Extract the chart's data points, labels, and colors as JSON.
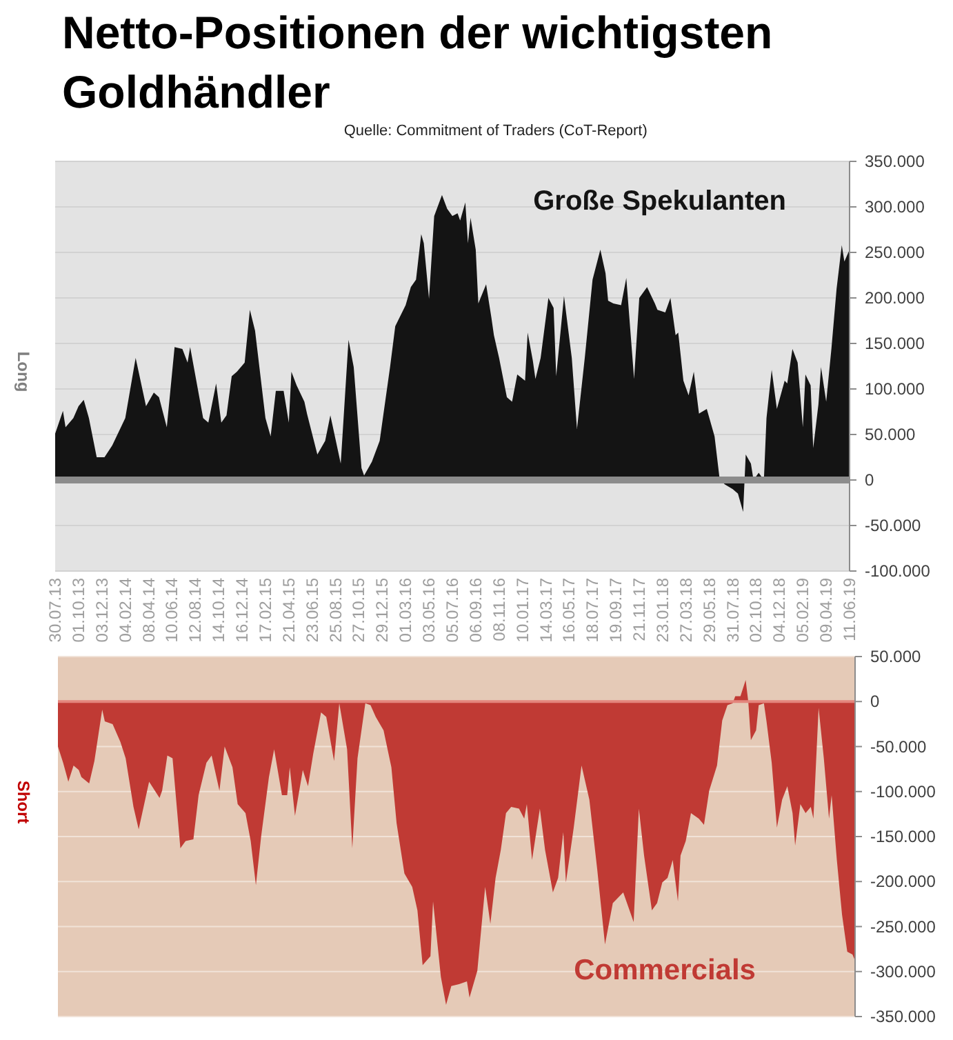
{
  "chart_data": [
    {
      "type": "area",
      "title": "Netto-Positionen der wichtigsten Goldhändler",
      "ylabel": "Long",
      "annotations": [
        "Quelle: Commitment of Traders (CoT-Report)"
      ],
      "legend": "top right",
      "grid": "y",
      "xlim": [
        "2013-07-30",
        "2019-06-11"
      ],
      "xticks": [
        {
          "value": "2013-07-30",
          "label": "30.07.13"
        },
        {
          "value": "2013-10-01",
          "label": "01.10.13"
        },
        {
          "value": "2013-12-03",
          "label": "03.12.13"
        },
        {
          "value": "2014-02-04",
          "label": "04.02.14"
        },
        {
          "value": "2014-04-08",
          "label": "08.04.14"
        },
        {
          "value": "2014-06-10",
          "label": "10.06.14"
        },
        {
          "value": "2014-08-12",
          "label": "12.08.14"
        },
        {
          "value": "2014-10-14",
          "label": "14.10.14"
        },
        {
          "value": "2014-12-16",
          "label": "16.12.14"
        },
        {
          "value": "2015-02-17",
          "label": "17.02.15"
        },
        {
          "value": "2015-04-21",
          "label": "21.04.15"
        },
        {
          "value": "2015-06-23",
          "label": "23.06.15"
        },
        {
          "value": "2015-08-25",
          "label": "25.08.15"
        },
        {
          "value": "2015-10-27",
          "label": "27.10.15"
        },
        {
          "value": "2015-12-29",
          "label": "29.12.15"
        },
        {
          "value": "2016-03-01",
          "label": "01.03.16"
        },
        {
          "value": "2016-05-03",
          "label": "03.05.16"
        },
        {
          "value": "2016-07-05",
          "label": "05.07.16"
        },
        {
          "value": "2016-09-06",
          "label": "06.09.16"
        },
        {
          "value": "2016-11-08",
          "label": "08.11.16"
        },
        {
          "value": "2017-01-10",
          "label": "10.01.17"
        },
        {
          "value": "2017-03-14",
          "label": "14.03.17"
        },
        {
          "value": "2017-05-16",
          "label": "16.05.17"
        },
        {
          "value": "2017-07-18",
          "label": "18.07.17"
        },
        {
          "value": "2017-09-19",
          "label": "19.09.17"
        },
        {
          "value": "2017-11-21",
          "label": "21.11.17"
        },
        {
          "value": "2018-01-23",
          "label": "23.01.18"
        },
        {
          "value": "2018-03-27",
          "label": "27.03.18"
        },
        {
          "value": "2018-05-29",
          "label": "29.05.18"
        },
        {
          "value": "2018-07-31",
          "label": "31.07.18"
        },
        {
          "value": "2018-10-02",
          "label": "02.10.18"
        },
        {
          "value": "2018-12-04",
          "label": "04.12.18"
        },
        {
          "value": "2019-02-05",
          "label": "05.02.19"
        },
        {
          "value": "2019-04-09",
          "label": "09.04.19"
        },
        {
          "value": "2019-06-11",
          "label": "11.06.19"
        }
      ],
      "ylim": [
        -100000,
        350000
      ],
      "yticks": [
        {
          "value": -100000,
          "label": "-100.000"
        },
        {
          "value": -50000,
          "label": "-50.000"
        },
        0,
        {
          "value": 50000,
          "label": "50.000"
        },
        {
          "value": 100000,
          "label": "100.000"
        },
        {
          "value": 150000,
          "label": "150.000"
        },
        {
          "value": 200000,
          "label": "200.000"
        },
        {
          "value": 250000,
          "label": "250.000"
        },
        {
          "value": 300000,
          "label": "300.000"
        },
        {
          "value": 350000,
          "label": "350.000"
        }
      ],
      "x": [
        "2013-07-30",
        "2013-08-20",
        "2013-08-27",
        "2013-09-17",
        "2013-10-01",
        "2013-10-15",
        "2013-10-29",
        "2013-11-19",
        "2013-12-10",
        "2013-12-31",
        "2014-02-04",
        "2014-03-04",
        "2014-04-01",
        "2014-04-22",
        "2014-05-06",
        "2014-05-27",
        "2014-06-17",
        "2014-07-08",
        "2014-07-22",
        "2014-07-29",
        "2014-09-02",
        "2014-09-16",
        "2014-10-07",
        "2014-10-21",
        "2014-11-04",
        "2014-11-18",
        "2014-12-02",
        "2014-12-23",
        "2015-01-06",
        "2015-01-20",
        "2015-02-17",
        "2015-03-03",
        "2015-03-17",
        "2015-04-07",
        "2015-04-21",
        "2015-04-28",
        "2015-05-12",
        "2015-06-02",
        "2015-06-09",
        "2015-07-07",
        "2015-07-28",
        "2015-08-11",
        "2015-08-18",
        "2015-09-08",
        "2015-09-29",
        "2015-10-13",
        "2015-11-03",
        "2015-11-10",
        "2015-11-24",
        "2015-12-01",
        "2015-12-22",
        "2016-01-19",
        "2016-02-02",
        "2016-03-01",
        "2016-03-15",
        "2016-03-29",
        "2016-04-12",
        "2016-04-19",
        "2016-05-03",
        "2016-05-17",
        "2016-06-07",
        "2016-06-21",
        "2016-07-05",
        "2016-07-19",
        "2016-07-26",
        "2016-08-09",
        "2016-08-16",
        "2016-08-23",
        "2016-09-06",
        "2016-09-13",
        "2016-10-04",
        "2016-10-18",
        "2016-10-25",
        "2016-11-08",
        "2016-11-29",
        "2016-12-13",
        "2016-12-27",
        "2017-01-17",
        "2017-01-24",
        "2017-02-07",
        "2017-02-14",
        "2017-02-28",
        "2017-03-21",
        "2017-04-04",
        "2017-04-11",
        "2017-05-02",
        "2017-05-23",
        "2017-06-06",
        "2017-06-27",
        "2017-07-18",
        "2017-08-08",
        "2017-08-22",
        "2017-08-29",
        "2017-09-12",
        "2017-10-03",
        "2017-10-17",
        "2017-11-07",
        "2017-11-21",
        "2017-12-12",
        "2018-01-02",
        "2018-01-09",
        "2018-01-30",
        "2018-02-13",
        "2018-02-27",
        "2018-03-06",
        "2018-03-20",
        "2018-04-03",
        "2018-04-17",
        "2018-05-01",
        "2018-05-22",
        "2018-06-12",
        "2018-06-26",
        "2018-07-10",
        "2018-07-31",
        "2018-08-14",
        "2018-08-28",
        "2018-09-04",
        "2018-09-18",
        "2018-09-25",
        "2018-10-09",
        "2018-10-23",
        "2018-10-30",
        "2018-11-13",
        "2018-11-27",
        "2018-12-18",
        "2018-12-25",
        "2019-01-08",
        "2019-01-22",
        "2019-02-05",
        "2019-02-12",
        "2019-02-26",
        "2019-03-05",
        "2019-03-19",
        "2019-03-26",
        "2019-04-09",
        "2019-04-23",
        "2019-05-07",
        "2019-05-21",
        "2019-05-28",
        "2019-06-11"
      ],
      "series": [
        {
          "name": "Große Spekulanten",
          "color": "#141414",
          "values": [
            51000,
            76000,
            58000,
            68000,
            81000,
            88000,
            68000,
            25000,
            25000,
            38000,
            68000,
            134000,
            81000,
            96000,
            91000,
            58000,
            146000,
            144000,
            129000,
            146000,
            68000,
            63000,
            106000,
            63000,
            71000,
            114000,
            119000,
            129000,
            187000,
            164000,
            68000,
            48000,
            98000,
            98000,
            63000,
            119000,
            104000,
            86000,
            73000,
            28000,
            43000,
            71000,
            58000,
            18000,
            154000,
            124000,
            13000,
            5000,
            15000,
            20000,
            43000,
            124000,
            169000,
            192000,
            212000,
            220000,
            270000,
            260000,
            199000,
            290000,
            313000,
            298000,
            290000,
            293000,
            285000,
            305000,
            260000,
            288000,
            253000,
            194000,
            215000,
            179000,
            159000,
            134000,
            91000,
            86000,
            116000,
            109000,
            162000,
            131000,
            111000,
            134000,
            200000,
            189000,
            114000,
            202000,
            134000,
            56000,
            134000,
            220000,
            253000,
            227000,
            197000,
            194000,
            192000,
            222000,
            111000,
            200000,
            212000,
            194000,
            187000,
            184000,
            200000,
            159000,
            162000,
            109000,
            93000,
            119000,
            73000,
            78000,
            48000,
            0,
            -5000,
            -10000,
            -15000,
            -35000,
            28000,
            18000,
            0,
            8000,
            0,
            68000,
            121000,
            78000,
            109000,
            106000,
            144000,
            129000,
            58000,
            116000,
            104000,
            35000,
            83000,
            124000,
            86000,
            144000,
            210000,
            258000,
            240000,
            253000
          ]
        }
      ]
    },
    {
      "type": "area",
      "ylabel": "Short",
      "legend": "bottom right",
      "grid": "y",
      "tick_labels": "y",
      "ref_lines": [
        {
          "axis": "y",
          "value": 0,
          "color": "#e3857c"
        }
      ],
      "xlim": [
        "2013-07-30",
        "2019-06-11"
      ],
      "ylim": [
        -350000,
        50000
      ],
      "yticks": [
        {
          "value": -350000,
          "label": "-350.000"
        },
        {
          "value": -300000,
          "label": "-300.000"
        },
        {
          "value": -250000,
          "label": "-250.000"
        },
        {
          "value": -200000,
          "label": "-200.000"
        },
        {
          "value": -150000,
          "label": "-150.000"
        },
        {
          "value": -100000,
          "label": "-100.000"
        },
        {
          "value": -50000,
          "label": "-50.000"
        },
        0,
        {
          "value": 50000,
          "label": "50.000"
        }
      ],
      "x": [
        "2013-07-30",
        "2013-08-13",
        "2013-08-27",
        "2013-09-10",
        "2013-09-24",
        "2013-10-01",
        "2013-10-22",
        "2013-11-05",
        "2013-11-26",
        "2013-12-03",
        "2013-12-24",
        "2014-01-14",
        "2014-01-28",
        "2014-02-18",
        "2014-03-04",
        "2014-04-01",
        "2014-04-29",
        "2014-05-06",
        "2014-05-20",
        "2014-06-03",
        "2014-06-24",
        "2014-07-08",
        "2014-07-29",
        "2014-08-12",
        "2014-09-02",
        "2014-09-16",
        "2014-10-07",
        "2014-10-21",
        "2014-11-11",
        "2014-11-25",
        "2014-12-16",
        "2014-12-30",
        "2015-01-13",
        "2015-01-27",
        "2015-02-17",
        "2015-03-03",
        "2015-03-24",
        "2015-04-07",
        "2015-04-14",
        "2015-04-28",
        "2015-05-19",
        "2015-06-02",
        "2015-06-16",
        "2015-07-07",
        "2015-07-21",
        "2015-08-11",
        "2015-08-25",
        "2015-09-15",
        "2015-09-29",
        "2015-10-13",
        "2015-11-03",
        "2015-11-17",
        "2015-12-01",
        "2015-12-22",
        "2016-01-12",
        "2016-01-26",
        "2016-02-16",
        "2016-03-08",
        "2016-03-22",
        "2016-04-05",
        "2016-04-26",
        "2016-05-03",
        "2016-05-24",
        "2016-06-07",
        "2016-06-21",
        "2016-07-12",
        "2016-08-02",
        "2016-08-09",
        "2016-08-30",
        "2016-09-20",
        "2016-10-04",
        "2016-10-18",
        "2016-11-01",
        "2016-11-15",
        "2016-11-29",
        "2016-12-20",
        "2017-01-03",
        "2017-01-10",
        "2017-01-24",
        "2017-02-14",
        "2017-02-28",
        "2017-03-21",
        "2017-04-04",
        "2017-04-18",
        "2017-04-25",
        "2017-05-16",
        "2017-06-06",
        "2017-06-27",
        "2017-07-18",
        "2017-08-08",
        "2017-08-29",
        "2017-09-26",
        "2017-10-24",
        "2017-11-07",
        "2017-11-21",
        "2017-12-12",
        "2017-12-26",
        "2018-01-09",
        "2018-01-23",
        "2018-02-06",
        "2018-02-20",
        "2018-02-27",
        "2018-03-13",
        "2018-03-27",
        "2018-04-17",
        "2018-05-01",
        "2018-05-15",
        "2018-06-05",
        "2018-06-19",
        "2018-07-03",
        "2018-07-17",
        "2018-07-24",
        "2018-08-07",
        "2018-08-21",
        "2018-08-28",
        "2018-09-04",
        "2018-09-18",
        "2018-09-25",
        "2018-10-09",
        "2018-10-16",
        "2018-10-30",
        "2018-11-13",
        "2018-11-27",
        "2018-12-11",
        "2018-12-25",
        "2019-01-01",
        "2019-01-15",
        "2019-01-29",
        "2019-02-12",
        "2019-02-19",
        "2019-03-05",
        "2019-03-19",
        "2019-04-02",
        "2019-04-09",
        "2019-04-23",
        "2019-05-07",
        "2019-05-21",
        "2019-06-04",
        "2019-06-11"
      ],
      "series": [
        {
          "name": "Commercials",
          "color": "#c03a34",
          "values": [
            -50000,
            -68000,
            -89000,
            -71000,
            -76000,
            -84000,
            -91000,
            -66000,
            -9000,
            -22000,
            -25000,
            -45000,
            -63000,
            -117000,
            -142000,
            -89000,
            -107000,
            -99000,
            -60000,
            -63000,
            -163000,
            -155000,
            -153000,
            -104000,
            -68000,
            -60000,
            -99000,
            -50000,
            -73000,
            -114000,
            -124000,
            -155000,
            -204000,
            -150000,
            -84000,
            -53000,
            -104000,
            -104000,
            -73000,
            -127000,
            -76000,
            -94000,
            -58000,
            -12000,
            -17000,
            -66000,
            -2000,
            -53000,
            -163000,
            -63000,
            -2000,
            -4000,
            -17000,
            -32000,
            -73000,
            -135000,
            -191000,
            -206000,
            -232000,
            -293000,
            -283000,
            -222000,
            -306000,
            -337000,
            -316000,
            -314000,
            -311000,
            -329000,
            -299000,
            -206000,
            -247000,
            -196000,
            -165000,
            -124000,
            -117000,
            -119000,
            -130000,
            -114000,
            -176000,
            -119000,
            -165000,
            -212000,
            -196000,
            -145000,
            -201000,
            -140000,
            -71000,
            -109000,
            -186000,
            -270000,
            -224000,
            -212000,
            -245000,
            -119000,
            -171000,
            -232000,
            -224000,
            -201000,
            -196000,
            -176000,
            -222000,
            -171000,
            -155000,
            -124000,
            -130000,
            -137000,
            -99000,
            -71000,
            -21000,
            -4000,
            -2000,
            6000,
            6000,
            24000,
            0,
            -43000,
            -32000,
            -4000,
            -2000,
            -22000,
            -68000,
            -140000,
            -109000,
            -94000,
            -124000,
            -160000,
            -114000,
            -124000,
            -117000,
            -130000,
            -7000,
            -63000,
            -130000,
            -104000,
            -176000,
            -237000,
            -278000,
            -281000,
            -288000
          ]
        }
      ]
    }
  ]
}
